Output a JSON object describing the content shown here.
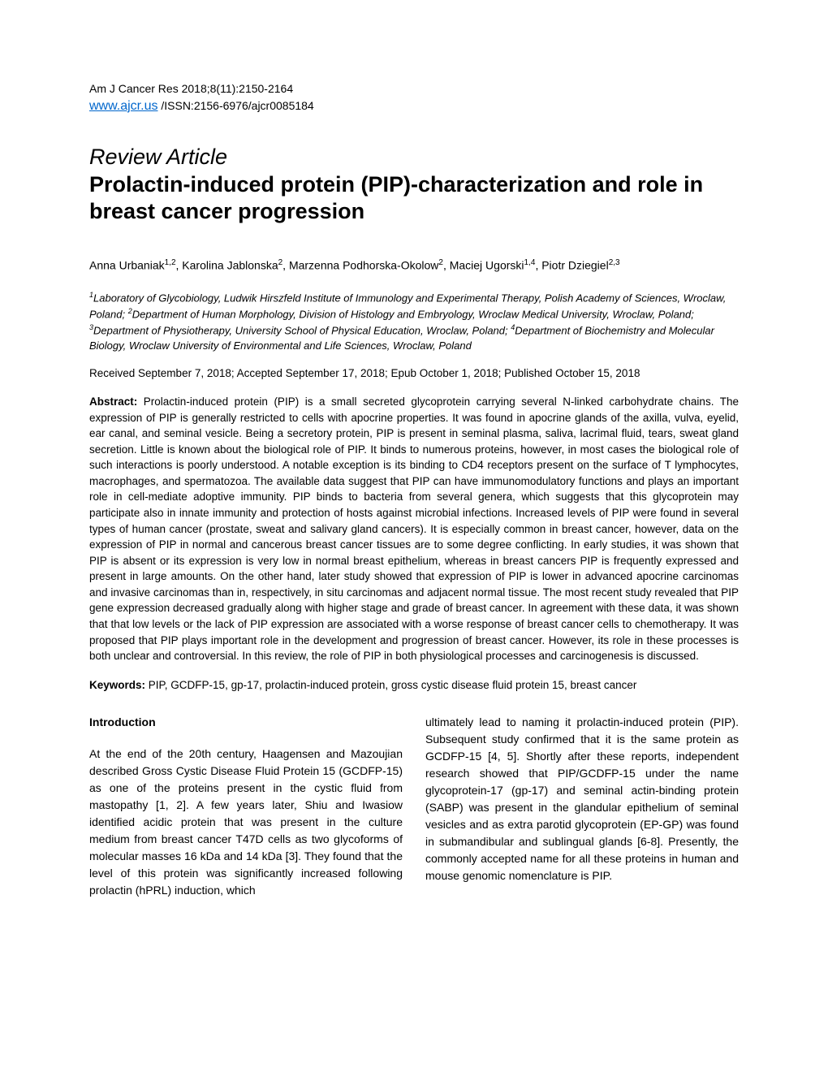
{
  "header": {
    "citation": "Am J Cancer Res 2018;8(11):2150-2164",
    "link_text": "www.ajcr.us",
    "issn_text": " /ISSN:2156-6976/ajcr0085184"
  },
  "article_type": "Review Article",
  "title": "Prolactin-induced protein (PIP)-characterization and role in breast cancer progression",
  "authors_html": "Anna Urbaniak<sup>1,2</sup>, Karolina Jablonska<sup>2</sup>, Marzenna Podhorska-Okolow<sup>2</sup>, Maciej Ugorski<sup>1,4</sup>, Piotr Dziegiel<sup>2,3</sup>",
  "affiliations_html": "<sup>1</sup>Laboratory of Glycobiology, Ludwik Hirszfeld Institute of Immunology and Experimental Therapy, Polish Academy of Sciences, Wroclaw, Poland; <sup>2</sup>Department of Human Morphology, Division of Histology and Embryology, Wroclaw Medical University, Wroclaw, Poland; <sup>3</sup>Department of Physiotherapy, University School of Physical Education, Wroclaw, Poland; <sup>4</sup>Department of Biochemistry and Molecular Biology, Wroclaw University of Environmental and Life Sciences, Wroclaw, Poland",
  "dates": "Received September 7, 2018; Accepted September 17, 2018; Epub October 1, 2018; Published October 15, 2018",
  "abstract_label": "Abstract:",
  "abstract_text": " Prolactin-induced protein (PIP) is a small secreted glycoprotein carrying several N-linked carbohydrate chains. The expression of PIP is generally restricted to cells with apocrine properties. It was found in apocrine glands of the axilla, vulva, eyelid, ear canal, and seminal vesicle. Being a secretory protein, PIP is present in seminal plasma, saliva, lacrimal fluid, tears, sweat gland secretion. Little is known about the biological role of PIP. It binds to numerous proteins, however, in most cases the biological role of such interactions is poorly understood. A notable exception is its binding to CD4 receptors present on the surface of T lymphocytes, macrophages, and spermatozoa. The available data suggest that PIP can have immunomodulatory functions and plays an important role in cell-mediate adoptive immunity. PIP binds to bacteria from several genera, which suggests that this glycoprotein may participate also in innate immunity and protection of hosts against microbial infections. Increased levels of PIP were found in several types of human cancer (prostate, sweat and salivary gland cancers). It is especially common in breast cancer, however, data on the expression of PIP in normal and cancerous breast cancer tissues are to some degree conflicting. In early studies, it was shown that PIP is absent or its expression is very low in normal breast epithelium, whereas in breast cancers PIP is frequently expressed and present in large amounts. On the other hand, later study showed that expression of PIP is lower in advanced apocrine carcinomas and invasive carcinomas than in, respectively, in situ carcinomas and adjacent normal tissue. The most recent study revealed that PIP gene expression decreased gradually along with higher stage and grade of breast cancer. In agreement with these data, it was shown that that low levels or the lack of PIP expression are associated with a worse response of breast cancer cells to chemotherapy. It was proposed that PIP plays important role in the development and progression of breast cancer. However, its role in these processes is both unclear and controversial. In this review, the role of PIP in both physiological processes and carcinogenesis is discussed.",
  "keywords_label": "Keywords:",
  "keywords_text": " PIP, GCDFP-15, gp-17, prolactin-induced protein, gross cystic disease fluid protein 15, breast cancer",
  "body": {
    "section_heading": "Introduction",
    "column1": "At the end of the 20th century, Haagensen and Mazoujian described Gross Cystic Disease Fluid Protein 15 (GCDFP-15) as one of the proteins present in the cystic fluid from mastopathy [1, 2]. A few years later, Shiu and Iwasiow identified acidic protein that was present in the culture medium from breast cancer T47D cells as two glycoforms of molecular masses 16 kDa and 14 kDa [3]. They found that the level of this protein was significantly increased following prolactin (hPRL) induction, which",
    "column2": "ultimately lead to naming it prolactin-induced protein (PIP). Subsequent study confirmed that it is the same protein as GCDFP-15 [4, 5]. Shortly after these reports, independent research showed that PIP/GCDFP-15 under the name glycoprotein-17 (gp-17) and seminal actin-binding protein (SABP) was present in the glandular epithelium of seminal vesicles and as extra parotid glycoprotein (EP-GP) was found in submandibular and sublingual glands [6-8]. Presently, the commonly accepted name for all these proteins in human and mouse genomic nomenclature is PIP."
  },
  "colors": {
    "text": "#000000",
    "link": "#0066cc",
    "background": "#ffffff"
  },
  "typography": {
    "body_fontsize": 14,
    "title_fontsize": 27,
    "small_fontsize": 13.5
  }
}
